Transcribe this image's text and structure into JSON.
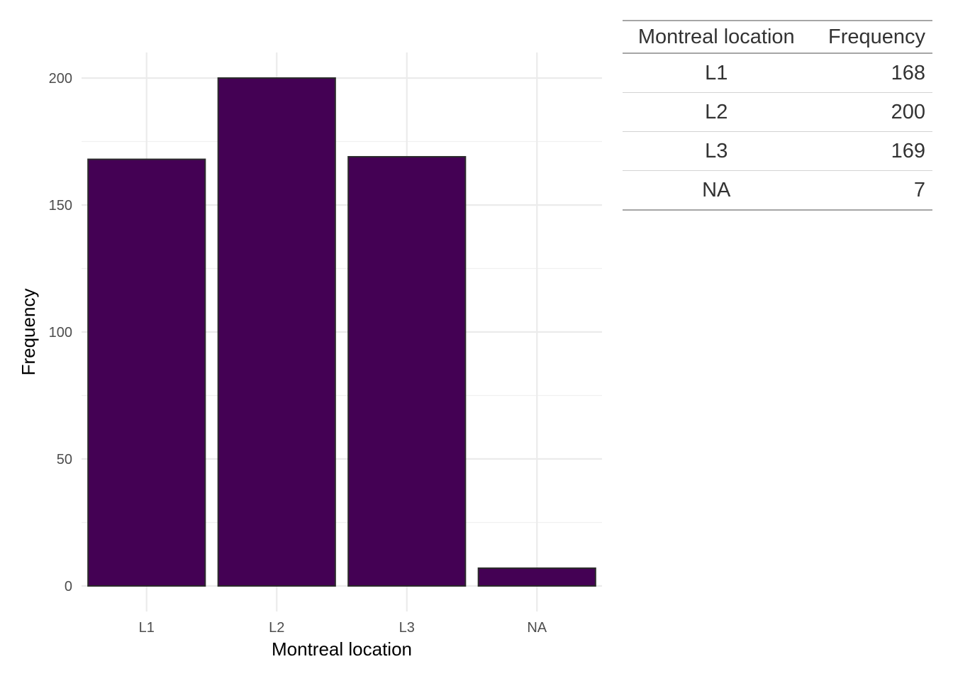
{
  "chart_data": {
    "type": "bar",
    "categories": [
      "L1",
      "L2",
      "L3",
      "NA"
    ],
    "values": [
      168,
      200,
      169,
      7
    ],
    "title": "",
    "xlabel": "Montreal location",
    "ylabel": "Frequency",
    "ylim": [
      0,
      210
    ],
    "yticks": [
      0,
      50,
      100,
      150,
      200
    ],
    "grid": true,
    "bar_color": "#440154",
    "bar_edge_color": "#2b2b2b",
    "grid_color": "#ebebeb"
  },
  "table": {
    "headers": [
      "Montreal location",
      "Frequency"
    ],
    "rows": [
      [
        "L1",
        "168"
      ],
      [
        "L2",
        "200"
      ],
      [
        "L3",
        "169"
      ],
      [
        "NA",
        "7"
      ]
    ]
  }
}
